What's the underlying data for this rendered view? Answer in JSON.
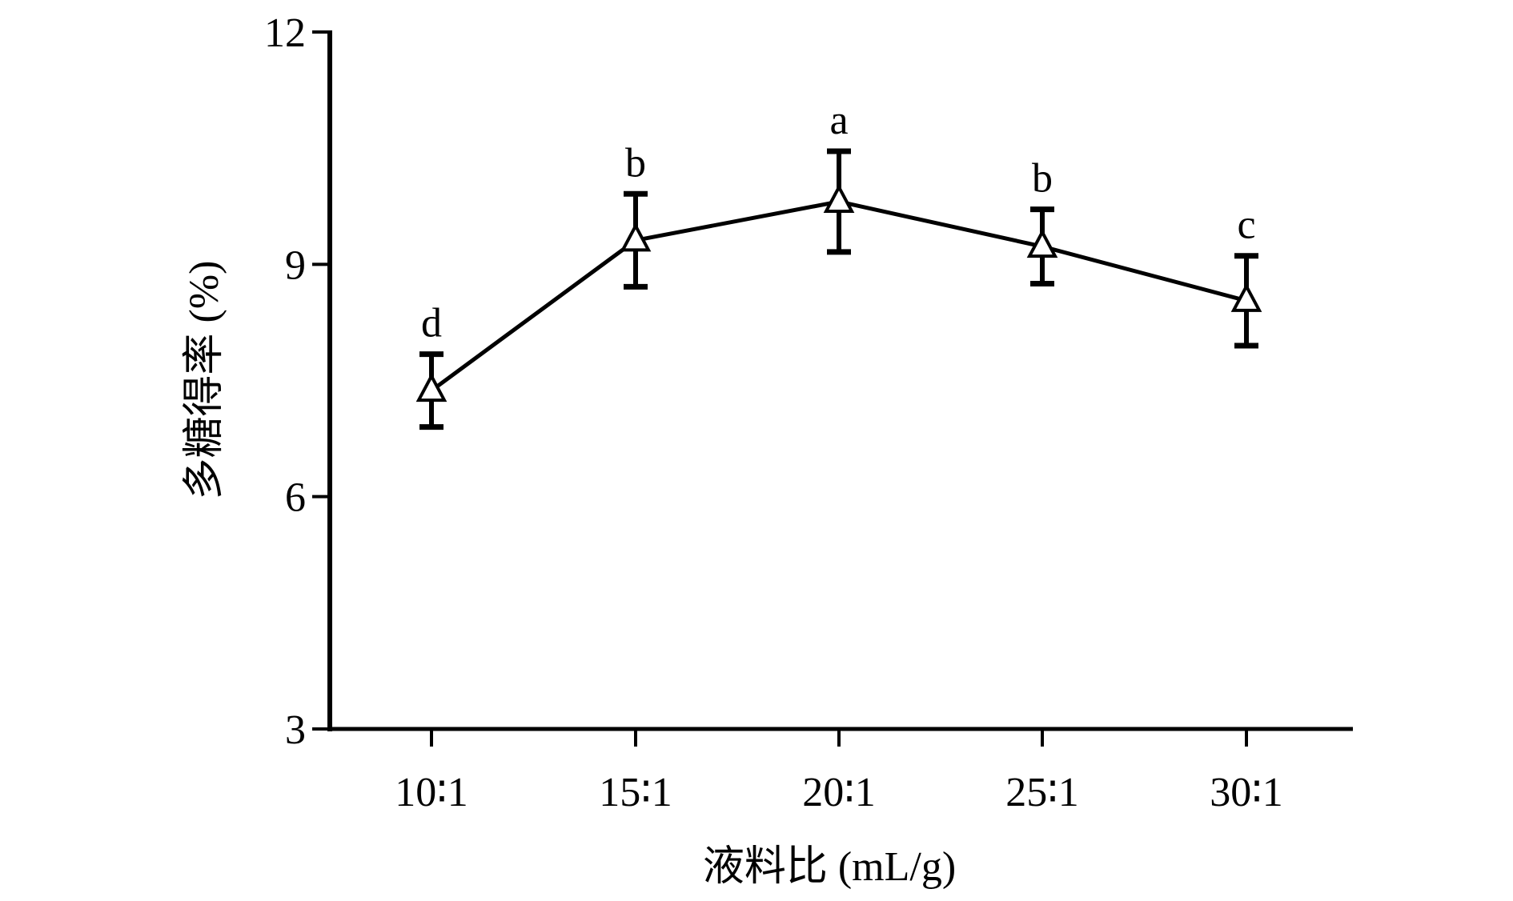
{
  "chart_data": {
    "type": "line",
    "title": "",
    "xlabel": "液料比 (mL/g)",
    "ylabel": "多糖得率 (%)",
    "categories": [
      "10∶1",
      "15∶1",
      "20∶1",
      "25∶1",
      "30∶1"
    ],
    "ylim": [
      3,
      12
    ],
    "yticks": [
      3,
      6,
      9,
      12
    ],
    "ytick_labels": [
      "3",
      "6",
      "9",
      "12"
    ],
    "grid": false,
    "series": [
      {
        "name": "多糖得率",
        "values": [
          7.37,
          9.31,
          9.81,
          9.23,
          8.53
        ],
        "errors": [
          0.47,
          0.6,
          0.65,
          0.48,
          0.58
        ],
        "significance_labels": [
          "d",
          "b",
          "a",
          "b",
          "c"
        ],
        "marker": "triangle-open",
        "color": "#000000"
      }
    ]
  }
}
